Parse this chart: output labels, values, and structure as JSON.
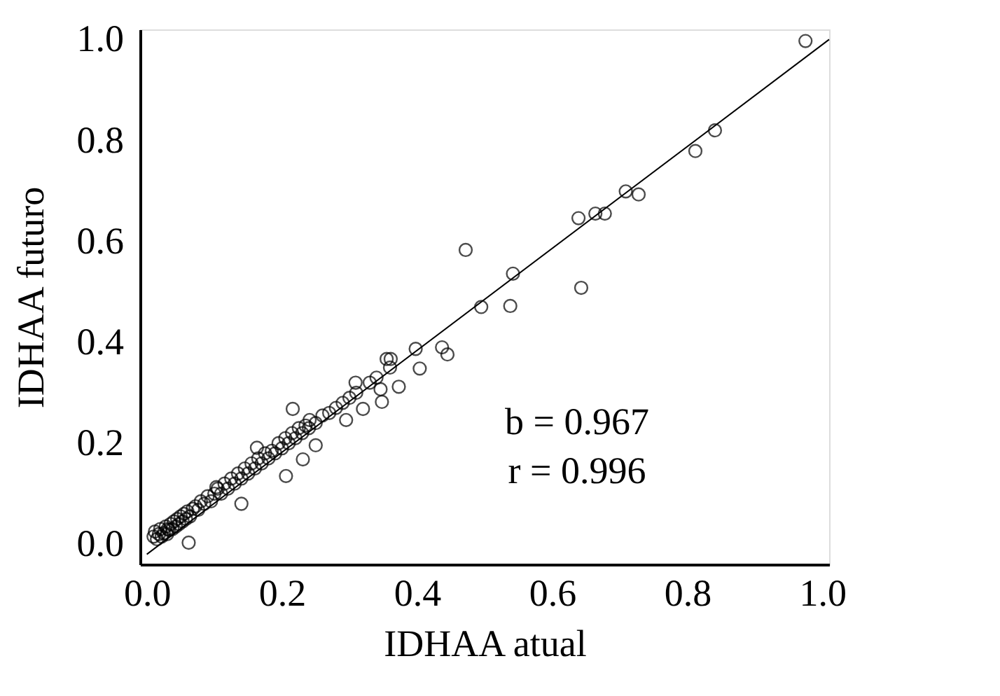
{
  "chart_data": {
    "type": "scatter",
    "xlabel": "IDHAA atual",
    "ylabel": "IDHAA futuro",
    "xlim": [
      -0.01,
      1.01
    ],
    "ylim": [
      -0.04,
      1.02
    ],
    "xticks": [
      {
        "value": 0,
        "label": "0.0"
      },
      0.2,
      0.4,
      0.6,
      0.8,
      {
        "value": 1,
        "label": "1.0"
      }
    ],
    "yticks": [
      {
        "value": 0,
        "label": "0.0"
      },
      0.2,
      0.4,
      0.6,
      0.8,
      {
        "value": 1,
        "label": "1.0"
      }
    ],
    "grid": false,
    "annotations": [
      "b = 0.967",
      "r = 0.996"
    ],
    "series": [
      {
        "color": "#000000",
        "marker": "circle",
        "x": [
          0.975,
          0.841,
          0.812,
          0.709,
          0.728,
          0.639,
          0.664,
          0.678,
          0.472,
          0.542,
          0.643,
          0.538,
          0.495,
          0.445,
          0.437,
          0.404,
          0.398,
          0.373,
          0.361,
          0.355,
          0.348,
          0.346,
          0.309,
          0.32,
          0.295,
          0.216,
          0.241,
          0.206,
          0.231,
          0.25,
          0.163,
          0.14,
          0.062,
          0.031,
          0.103,
          0.01,
          0.012,
          0.015,
          0.018,
          0.02,
          0.022,
          0.025,
          0.028,
          0.03,
          0.033,
          0.035,
          0.038,
          0.04,
          0.043,
          0.045,
          0.048,
          0.05,
          0.053,
          0.055,
          0.058,
          0.06,
          0.064,
          0.068,
          0.072,
          0.076,
          0.08,
          0.085,
          0.09,
          0.095,
          0.1,
          0.105,
          0.11,
          0.115,
          0.12,
          0.125,
          0.13,
          0.135,
          0.14,
          0.145,
          0.15,
          0.155,
          0.16,
          0.165,
          0.17,
          0.175,
          0.18,
          0.185,
          0.19,
          0.195,
          0.2,
          0.205,
          0.21,
          0.215,
          0.22,
          0.225,
          0.23,
          0.235,
          0.24,
          0.25,
          0.26,
          0.27,
          0.28,
          0.29,
          0.3,
          0.31,
          0.33,
          0.34,
          0.36
        ],
        "values": [
          0.997,
          0.82,
          0.779,
          0.699,
          0.693,
          0.646,
          0.655,
          0.655,
          0.583,
          0.536,
          0.508,
          0.472,
          0.47,
          0.376,
          0.39,
          0.348,
          0.387,
          0.312,
          0.367,
          0.367,
          0.282,
          0.307,
          0.32,
          0.268,
          0.246,
          0.268,
          0.246,
          0.135,
          0.168,
          0.196,
          0.191,
          0.08,
          0.003,
          0.03,
          0.113,
          0.015,
          0.025,
          0.01,
          0.02,
          0.03,
          0.015,
          0.022,
          0.035,
          0.02,
          0.028,
          0.04,
          0.03,
          0.045,
          0.035,
          0.05,
          0.04,
          0.055,
          0.045,
          0.06,
          0.05,
          0.065,
          0.055,
          0.07,
          0.075,
          0.068,
          0.085,
          0.08,
          0.095,
          0.085,
          0.1,
          0.11,
          0.1,
          0.12,
          0.11,
          0.13,
          0.12,
          0.14,
          0.13,
          0.15,
          0.14,
          0.16,
          0.15,
          0.17,
          0.16,
          0.18,
          0.17,
          0.185,
          0.18,
          0.2,
          0.19,
          0.21,
          0.2,
          0.22,
          0.21,
          0.23,
          0.22,
          0.235,
          0.23,
          0.24,
          0.255,
          0.26,
          0.27,
          0.28,
          0.29,
          0.3,
          0.32,
          0.33,
          0.35
        ]
      },
      {
        "type": "line",
        "color": "#000000",
        "marker": "none",
        "line_style": "solid",
        "x": [
          0.0,
          1.01
        ],
        "values": [
          -0.02,
          1.0
        ]
      }
    ]
  }
}
